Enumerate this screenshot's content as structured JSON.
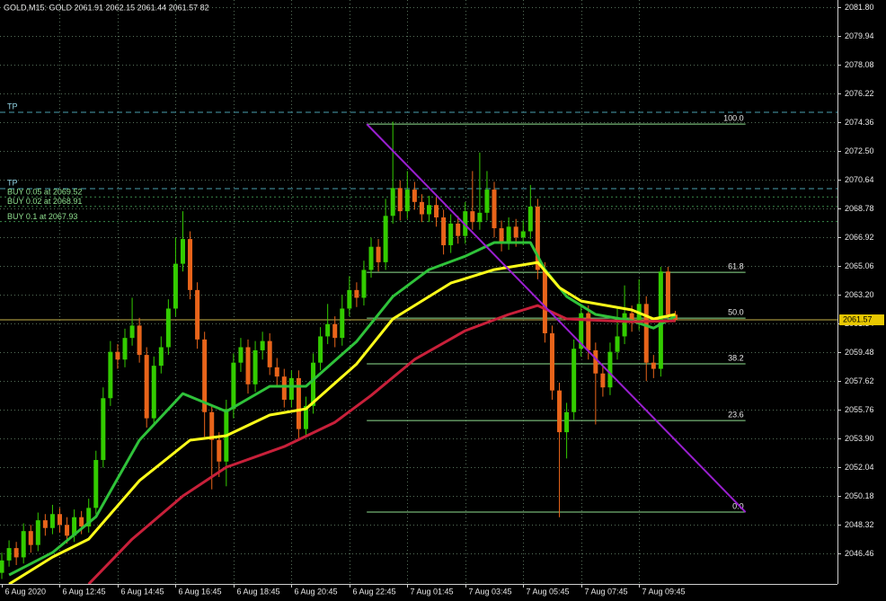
{
  "chart_data": {
    "type": "candlestick",
    "header": "GOLD,M15:  GOLD  2061.91 2062.15 2061.44 2061.57  82",
    "bull_color": "#33cc00",
    "bear_color": "#e8641a",
    "open": [
      2045.2,
      2046.0,
      2046.8,
      2046.2,
      2047.9,
      2047.0,
      2048.6,
      2048.1,
      2049.0,
      2048.3,
      2047.6,
      2048.8,
      2048.2,
      2049.4,
      2052.5,
      2056.5,
      2059.5,
      2059.0,
      2060.4,
      2061.2,
      2059.3,
      2055.2,
      2058.6,
      2059.8,
      2062.3,
      2065.2,
      2066.8,
      2063.5,
      2060.3,
      2055.6,
      2053.8,
      2052.4,
      2055.8,
      2058.8,
      2059.8,
      2057.4,
      2059.6,
      2060.2,
      2058.5,
      2057.9,
      2056.4,
      2057.8,
      2054.5,
      2056.0,
      2058.8,
      2060.5,
      2061.3,
      2060.4,
      2062.3,
      2063.5,
      2063.0,
      2064.8,
      2066.3,
      2065.3,
      2068.3,
      2070.1,
      2068.6,
      2070.0,
      2069.2,
      2068.4,
      2069.0,
      2068.2,
      2066.4,
      2067.8,
      2067.0,
      2068.6,
      2067.9,
      2068.5,
      2070.0,
      2067.5,
      2066.6,
      2067.6,
      2066.9,
      2067.3,
      2068.9,
      2064.8,
      2060.7,
      2057.0,
      2054.3,
      2055.6,
      2059.7,
      2062.0,
      2059.6,
      2058.1,
      2057.2,
      2059.5,
      2060.5,
      2062.0,
      2061.4,
      2062.6,
      2058.8,
      2058.4,
      2064.7,
      2061.91
    ],
    "high": [
      2046.5,
      2047.3,
      2047.2,
      2048.4,
      2048.3,
      2049.1,
      2049.0,
      2049.6,
      2049.4,
      2048.8,
      2049.3,
      2049.2,
      2050.0,
      2053.1,
      2057.2,
      2060.2,
      2060.0,
      2061.0,
      2063.0,
      2061.7,
      2059.8,
      2059.2,
      2060.5,
      2062.9,
      2066.9,
      2068.6,
      2067.3,
      2064.0,
      2060.8,
      2056.1,
      2054.3,
      2056.4,
      2059.4,
      2060.4,
      2060.3,
      2060.2,
      2060.8,
      2060.7,
      2059.1,
      2058.4,
      2058.3,
      2058.3,
      2056.6,
      2059.4,
      2061.1,
      2062.6,
      2061.8,
      2063.2,
      2064.4,
      2064.0,
      2065.4,
      2066.9,
      2066.8,
      2069.4,
      2074.4,
      2070.6,
      2071.2,
      2070.5,
      2069.7,
      2069.6,
      2069.5,
      2068.7,
      2068.4,
      2068.3,
      2069.2,
      2071.2,
      2072.4,
      2071.2,
      2070.5,
      2068.0,
      2068.2,
      2068.1,
      2068.0,
      2070.3,
      2069.4,
      2065.3,
      2061.2,
      2057.5,
      2056.2,
      2060.3,
      2062.6,
      2062.5,
      2060.1,
      2058.6,
      2060.1,
      2062.4,
      2063.8,
      2062.5,
      2064.2,
      2063.1,
      2059.3,
      2065.0,
      2065.0,
      2062.15
    ],
    "low": [
      2044.8,
      2045.6,
      2045.7,
      2045.8,
      2046.5,
      2046.6,
      2047.6,
      2047.7,
      2047.8,
      2047.1,
      2047.2,
      2047.7,
      2047.8,
      2049.0,
      2052.0,
      2056.0,
      2058.4,
      2058.5,
      2059.9,
      2058.8,
      2054.6,
      2054.8,
      2058.1,
      2059.3,
      2061.8,
      2064.7,
      2062.9,
      2059.7,
      2054.0,
      2050.6,
      2051.4,
      2050.8,
      2055.2,
      2058.2,
      2056.8,
      2056.9,
      2059.0,
      2058.0,
      2057.3,
      2055.9,
      2055.9,
      2053.9,
      2054.0,
      2055.5,
      2058.3,
      2060.0,
      2059.8,
      2059.9,
      2061.8,
      2062.4,
      2062.5,
      2064.3,
      2064.7,
      2064.8,
      2067.8,
      2068.0,
      2068.1,
      2068.7,
      2067.9,
      2067.9,
      2067.6,
      2065.8,
      2065.9,
      2066.5,
      2066.5,
      2067.4,
      2067.4,
      2068.0,
      2066.9,
      2066.0,
      2066.1,
      2066.3,
      2066.4,
      2066.8,
      2064.2,
      2060.1,
      2056.4,
      2048.8,
      2052.6,
      2055.1,
      2059.2,
      2059.0,
      2054.8,
      2056.6,
      2056.7,
      2059.0,
      2060.0,
      2060.8,
      2060.9,
      2057.6,
      2057.8,
      2057.9,
      2061.4,
      2061.44
    ],
    "close": [
      2046.0,
      2046.8,
      2046.2,
      2047.9,
      2047.0,
      2048.6,
      2048.1,
      2049.0,
      2048.3,
      2047.6,
      2048.8,
      2048.2,
      2049.4,
      2052.5,
      2056.5,
      2059.5,
      2059.0,
      2060.4,
      2061.2,
      2059.3,
      2055.2,
      2058.6,
      2059.8,
      2062.3,
      2065.2,
      2066.8,
      2063.5,
      2060.3,
      2055.6,
      2053.8,
      2052.4,
      2055.8,
      2058.8,
      2059.8,
      2057.4,
      2059.6,
      2060.2,
      2058.5,
      2057.9,
      2056.4,
      2057.8,
      2054.5,
      2056.0,
      2058.8,
      2060.5,
      2061.3,
      2060.4,
      2062.3,
      2063.5,
      2063.0,
      2064.8,
      2066.3,
      2065.3,
      2068.3,
      2070.1,
      2068.6,
      2070.0,
      2069.2,
      2068.4,
      2069.0,
      2068.2,
      2066.4,
      2067.8,
      2067.0,
      2068.6,
      2067.9,
      2068.5,
      2070.0,
      2067.5,
      2066.6,
      2067.6,
      2066.9,
      2067.3,
      2068.9,
      2064.8,
      2060.7,
      2057.0,
      2054.3,
      2055.6,
      2059.7,
      2062.0,
      2059.6,
      2058.1,
      2057.2,
      2059.5,
      2060.5,
      2062.0,
      2061.4,
      2062.6,
      2058.8,
      2058.4,
      2064.7,
      2061.91,
      2061.57
    ],
    "xlim": [
      -0.25,
      115.4
    ],
    "xticks": [
      {
        "value": 0,
        "label": "6 Aug 2020"
      },
      {
        "value": 8,
        "label": "6 Aug 12:45"
      },
      {
        "value": 16,
        "label": "6 Aug 14:45"
      },
      {
        "value": 24,
        "label": "6 Aug 16:45"
      },
      {
        "value": 32,
        "label": "6 Aug 18:45"
      },
      {
        "value": 40,
        "label": "6 Aug 20:45"
      },
      {
        "value": 48,
        "label": "6 Aug 22:45"
      },
      {
        "value": 56,
        "label": "7 Aug 01:45"
      },
      {
        "value": 64,
        "label": "7 Aug 03:45"
      },
      {
        "value": 72,
        "label": "7 Aug 05:45"
      },
      {
        "value": 80,
        "label": "7 Aug 07:45"
      },
      {
        "value": 88,
        "label": "7 Aug 09:45"
      }
    ],
    "ylim": [
      2044.48,
      2082.27
    ],
    "yticks": [
      {
        "value": 2081.8,
        "label": "2081.80"
      },
      2079.94,
      2078.08,
      2076.22,
      2074.36,
      {
        "value": 2072.5,
        "label": "2072.50"
      },
      2070.64,
      2068.78,
      2066.92,
      2065.06,
      {
        "value": 2063.2,
        "label": "2063.20"
      },
      2061.34,
      2059.48,
      2057.62,
      2055.76,
      {
        "value": 2053.9,
        "label": "2053.90"
      },
      2052.04,
      2050.18,
      2048.32,
      2046.46
    ],
    "grid": true,
    "grid_color": "#56705a",
    "moving_averages": [
      {
        "color": "#2fc23a",
        "x": [
          1,
          7,
          13,
          19,
          25,
          31,
          37,
          42,
          49,
          54,
          59,
          64,
          68,
          73,
          75,
          78,
          82,
          87,
          90,
          93
        ],
        "values": [
          2045.06,
          2046.51,
          2048.83,
          2053.78,
          2056.8,
          2055.64,
          2057.27,
          2057.27,
          2060.17,
          2063.08,
          2064.82,
          2065.69,
          2066.57,
          2066.57,
          2064.82,
          2063.08,
          2061.92,
          2061.51,
          2061.04,
          2061.8
        ]
      },
      {
        "color": "#ffff1a",
        "x": [
          1,
          7,
          12,
          19,
          26,
          31,
          37,
          42,
          49,
          54,
          62,
          68,
          74,
          77,
          80,
          87,
          90,
          93
        ],
        "values": [
          2044.47,
          2046.22,
          2047.38,
          2051.16,
          2053.78,
          2054.07,
          2055.41,
          2055.81,
          2058.72,
          2061.63,
          2063.95,
          2064.82,
          2065.29,
          2063.66,
          2062.79,
          2062.21,
          2061.63,
          2061.92
        ]
      },
      {
        "color": "#c8203a",
        "x": [
          12,
          18,
          25,
          31,
          39,
          46,
          51,
          57,
          64,
          70,
          74,
          78,
          87,
          93
        ],
        "values": [
          2044.47,
          2047.38,
          2050.17,
          2052.03,
          2053.37,
          2054.94,
          2056.68,
          2059.01,
          2060.87,
          2061.92,
          2062.5,
          2061.63,
          2061.45,
          2061.51
        ]
      }
    ],
    "fibonacci": {
      "start_x": 50.4,
      "start_price": 2074.24,
      "end_x": 102.7,
      "end_price": 2049.13,
      "color": "#8fe08f",
      "trend_color": "#9a1fd0",
      "levels": [
        {
          "value": 100,
          "label": "100.0"
        },
        {
          "value": 61.8,
          "label": "61.8"
        },
        {
          "value": 50,
          "label": "50.0"
        },
        {
          "value": 38.2,
          "label": "38.2"
        },
        {
          "value": 23.6,
          "label": "23.6"
        },
        {
          "value": 0,
          "label": "0.0"
        }
      ]
    },
    "tp_lines": [
      {
        "price": 2075.0,
        "label": "TP"
      },
      {
        "price": 2070.06,
        "label": "TP"
      }
    ],
    "order_lines": [
      {
        "price": 2069.52,
        "label": "BUY 0.05 at 2069.52"
      },
      {
        "price": 2068.91,
        "label": "BUY 0.02 at 2068.91"
      },
      {
        "price": 2067.93,
        "label": "BUY 0.1 at 2067.93"
      }
    ],
    "bid": 2061.57
  }
}
